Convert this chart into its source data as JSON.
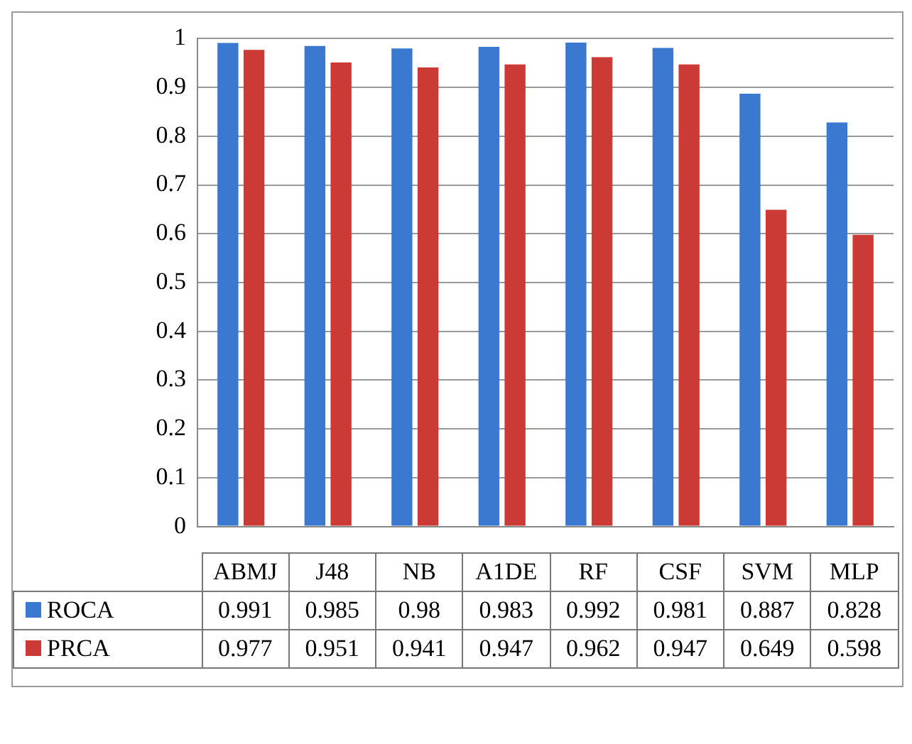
{
  "chart_data": {
    "type": "bar",
    "categories": [
      "ABMJ",
      "J48",
      "NB",
      "A1DE",
      "RF",
      "CSF",
      "SVM",
      "MLP"
    ],
    "series": [
      {
        "name": "ROCA",
        "color": "#3b78cf",
        "values": [
          0.991,
          0.985,
          0.98,
          0.983,
          0.992,
          0.981,
          0.887,
          0.828
        ]
      },
      {
        "name": "PRCA",
        "color": "#cc3a36",
        "values": [
          0.977,
          0.951,
          0.941,
          0.947,
          0.962,
          0.947,
          0.649,
          0.598
        ]
      }
    ],
    "ylim": [
      0,
      1
    ],
    "yticks": [
      0,
      0.1,
      0.2,
      0.3,
      0.4,
      0.5,
      0.6,
      0.7,
      0.8,
      0.9,
      1
    ],
    "grid": "y",
    "legend": "bottom",
    "data_labels": true
  }
}
